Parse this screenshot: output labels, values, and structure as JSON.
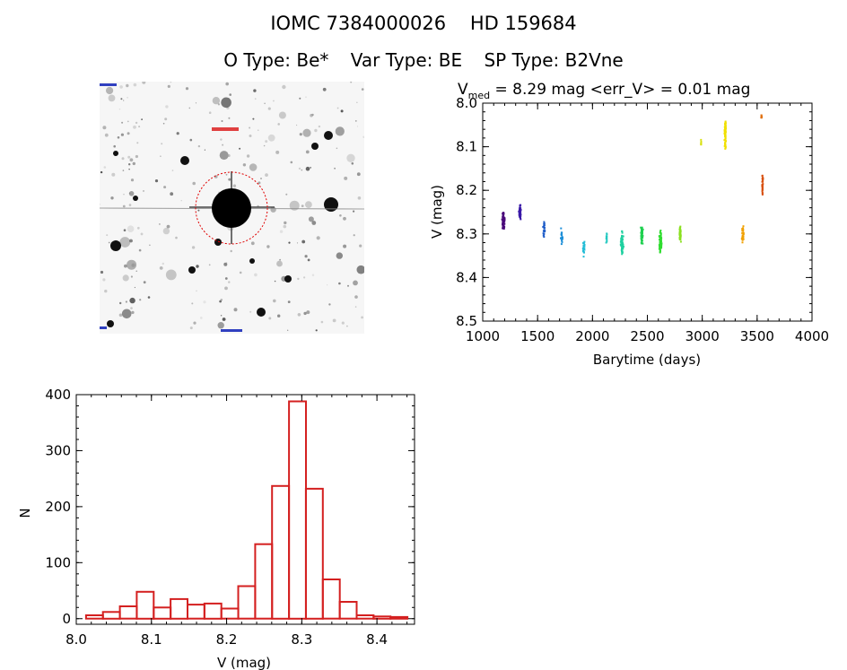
{
  "header": {
    "title": "IOMC 7384000026    HD 159684",
    "o_type": "O Type: Be*",
    "var_type": "Var Type: BE",
    "sp_type": "SP Type: B2Vne"
  },
  "image_thumbnail": {
    "alt": "stellar field image centered on target"
  },
  "chart_data": [
    {
      "type": "scatter",
      "title_prefix": "V",
      "title_sub": "med",
      "title_rest": " = 8.29 mag <err_V> = 0.01 mag",
      "xlabel": "Barytime (days)",
      "ylabel": "V (mag)",
      "xlim": [
        1000,
        4000
      ],
      "ylim": [
        8.5,
        8.0
      ],
      "y_inverted": true,
      "x_ticks": [
        1000,
        1500,
        2000,
        2500,
        3000,
        3500,
        4000
      ],
      "x_tick_labels": [
        "1000",
        "1500",
        "2000",
        "2500",
        "3000",
        "3500",
        "4000"
      ],
      "y_ticks": [
        8.0,
        8.1,
        8.2,
        8.3,
        8.4,
        8.5
      ],
      "y_tick_labels": [
        "8.0",
        "8.1",
        "8.2",
        "8.3",
        "8.4",
        "8.5"
      ],
      "clusters": [
        {
          "x": 1190,
          "y_center": 8.27,
          "spread": 0.03,
          "x_spread": 15,
          "count": 70,
          "color": "#4a0a7a"
        },
        {
          "x": 1340,
          "y_center": 8.25,
          "spread": 0.025,
          "x_spread": 12,
          "count": 60,
          "color": "#3a1aa8"
        },
        {
          "x": 1560,
          "y_center": 8.29,
          "spread": 0.025,
          "x_spread": 12,
          "count": 20,
          "color": "#1f5dc8"
        },
        {
          "x": 1720,
          "y_center": 8.31,
          "spread": 0.03,
          "x_spread": 12,
          "count": 22,
          "color": "#1c8ed8"
        },
        {
          "x": 1920,
          "y_center": 8.33,
          "spread": 0.025,
          "x_spread": 12,
          "count": 20,
          "color": "#22bcd6"
        },
        {
          "x": 2130,
          "y_center": 8.31,
          "spread": 0.02,
          "x_spread": 8,
          "count": 12,
          "color": "#22c8c0"
        },
        {
          "x": 2270,
          "y_center": 8.32,
          "spread": 0.035,
          "x_spread": 14,
          "count": 70,
          "color": "#20d0a0"
        },
        {
          "x": 2450,
          "y_center": 8.3,
          "spread": 0.03,
          "x_spread": 12,
          "count": 55,
          "color": "#20d050"
        },
        {
          "x": 2620,
          "y_center": 8.32,
          "spread": 0.035,
          "x_spread": 14,
          "count": 80,
          "color": "#30dd30"
        },
        {
          "x": 2800,
          "y_center": 8.3,
          "spread": 0.03,
          "x_spread": 10,
          "count": 55,
          "color": "#8ae020"
        },
        {
          "x": 2990,
          "y_center": 8.09,
          "spread": 0.008,
          "x_spread": 3,
          "count": 6,
          "color": "#d8e010"
        },
        {
          "x": 3210,
          "y_center": 8.07,
          "spread": 0.04,
          "x_spread": 10,
          "count": 70,
          "color": "#f0e000"
        },
        {
          "x": 3370,
          "y_center": 8.3,
          "spread": 0.03,
          "x_spread": 12,
          "count": 22,
          "color": "#f0a000"
        },
        {
          "x": 3540,
          "y_center": 8.03,
          "spread": 0.006,
          "x_spread": 6,
          "count": 8,
          "color": "#e07010"
        },
        {
          "x": 3550,
          "y_center": 8.19,
          "spread": 0.035,
          "x_spread": 6,
          "count": 35,
          "color": "#d85010"
        }
      ]
    },
    {
      "type": "bar",
      "subtype": "histogram",
      "xlabel": "V (mag)",
      "ylabel": "N",
      "xlim": [
        8.0,
        8.45
      ],
      "ylim": [
        -10,
        400
      ],
      "bin_width": 0.0225,
      "bin_left": [
        8.013,
        8.0355,
        8.058,
        8.0805,
        8.103,
        8.1255,
        8.148,
        8.1705,
        8.193,
        8.2155,
        8.238,
        8.2605,
        8.283,
        8.3055,
        8.328,
        8.3505,
        8.373,
        8.3955,
        8.418
      ],
      "values": [
        6,
        12,
        22,
        48,
        20,
        35,
        25,
        27,
        18,
        58,
        133,
        237,
        388,
        232,
        70,
        30,
        6,
        4,
        3
      ],
      "x_ticks": [
        8.0,
        8.1,
        8.2,
        8.3,
        8.4
      ],
      "x_tick_labels": [
        "8.0",
        "8.1",
        "8.2",
        "8.3",
        "8.4"
      ],
      "y_ticks": [
        0,
        100,
        200,
        300,
        400
      ],
      "y_tick_labels": [
        "0",
        "100",
        "200",
        "300",
        "400"
      ],
      "bar_color": "#d42020"
    }
  ]
}
